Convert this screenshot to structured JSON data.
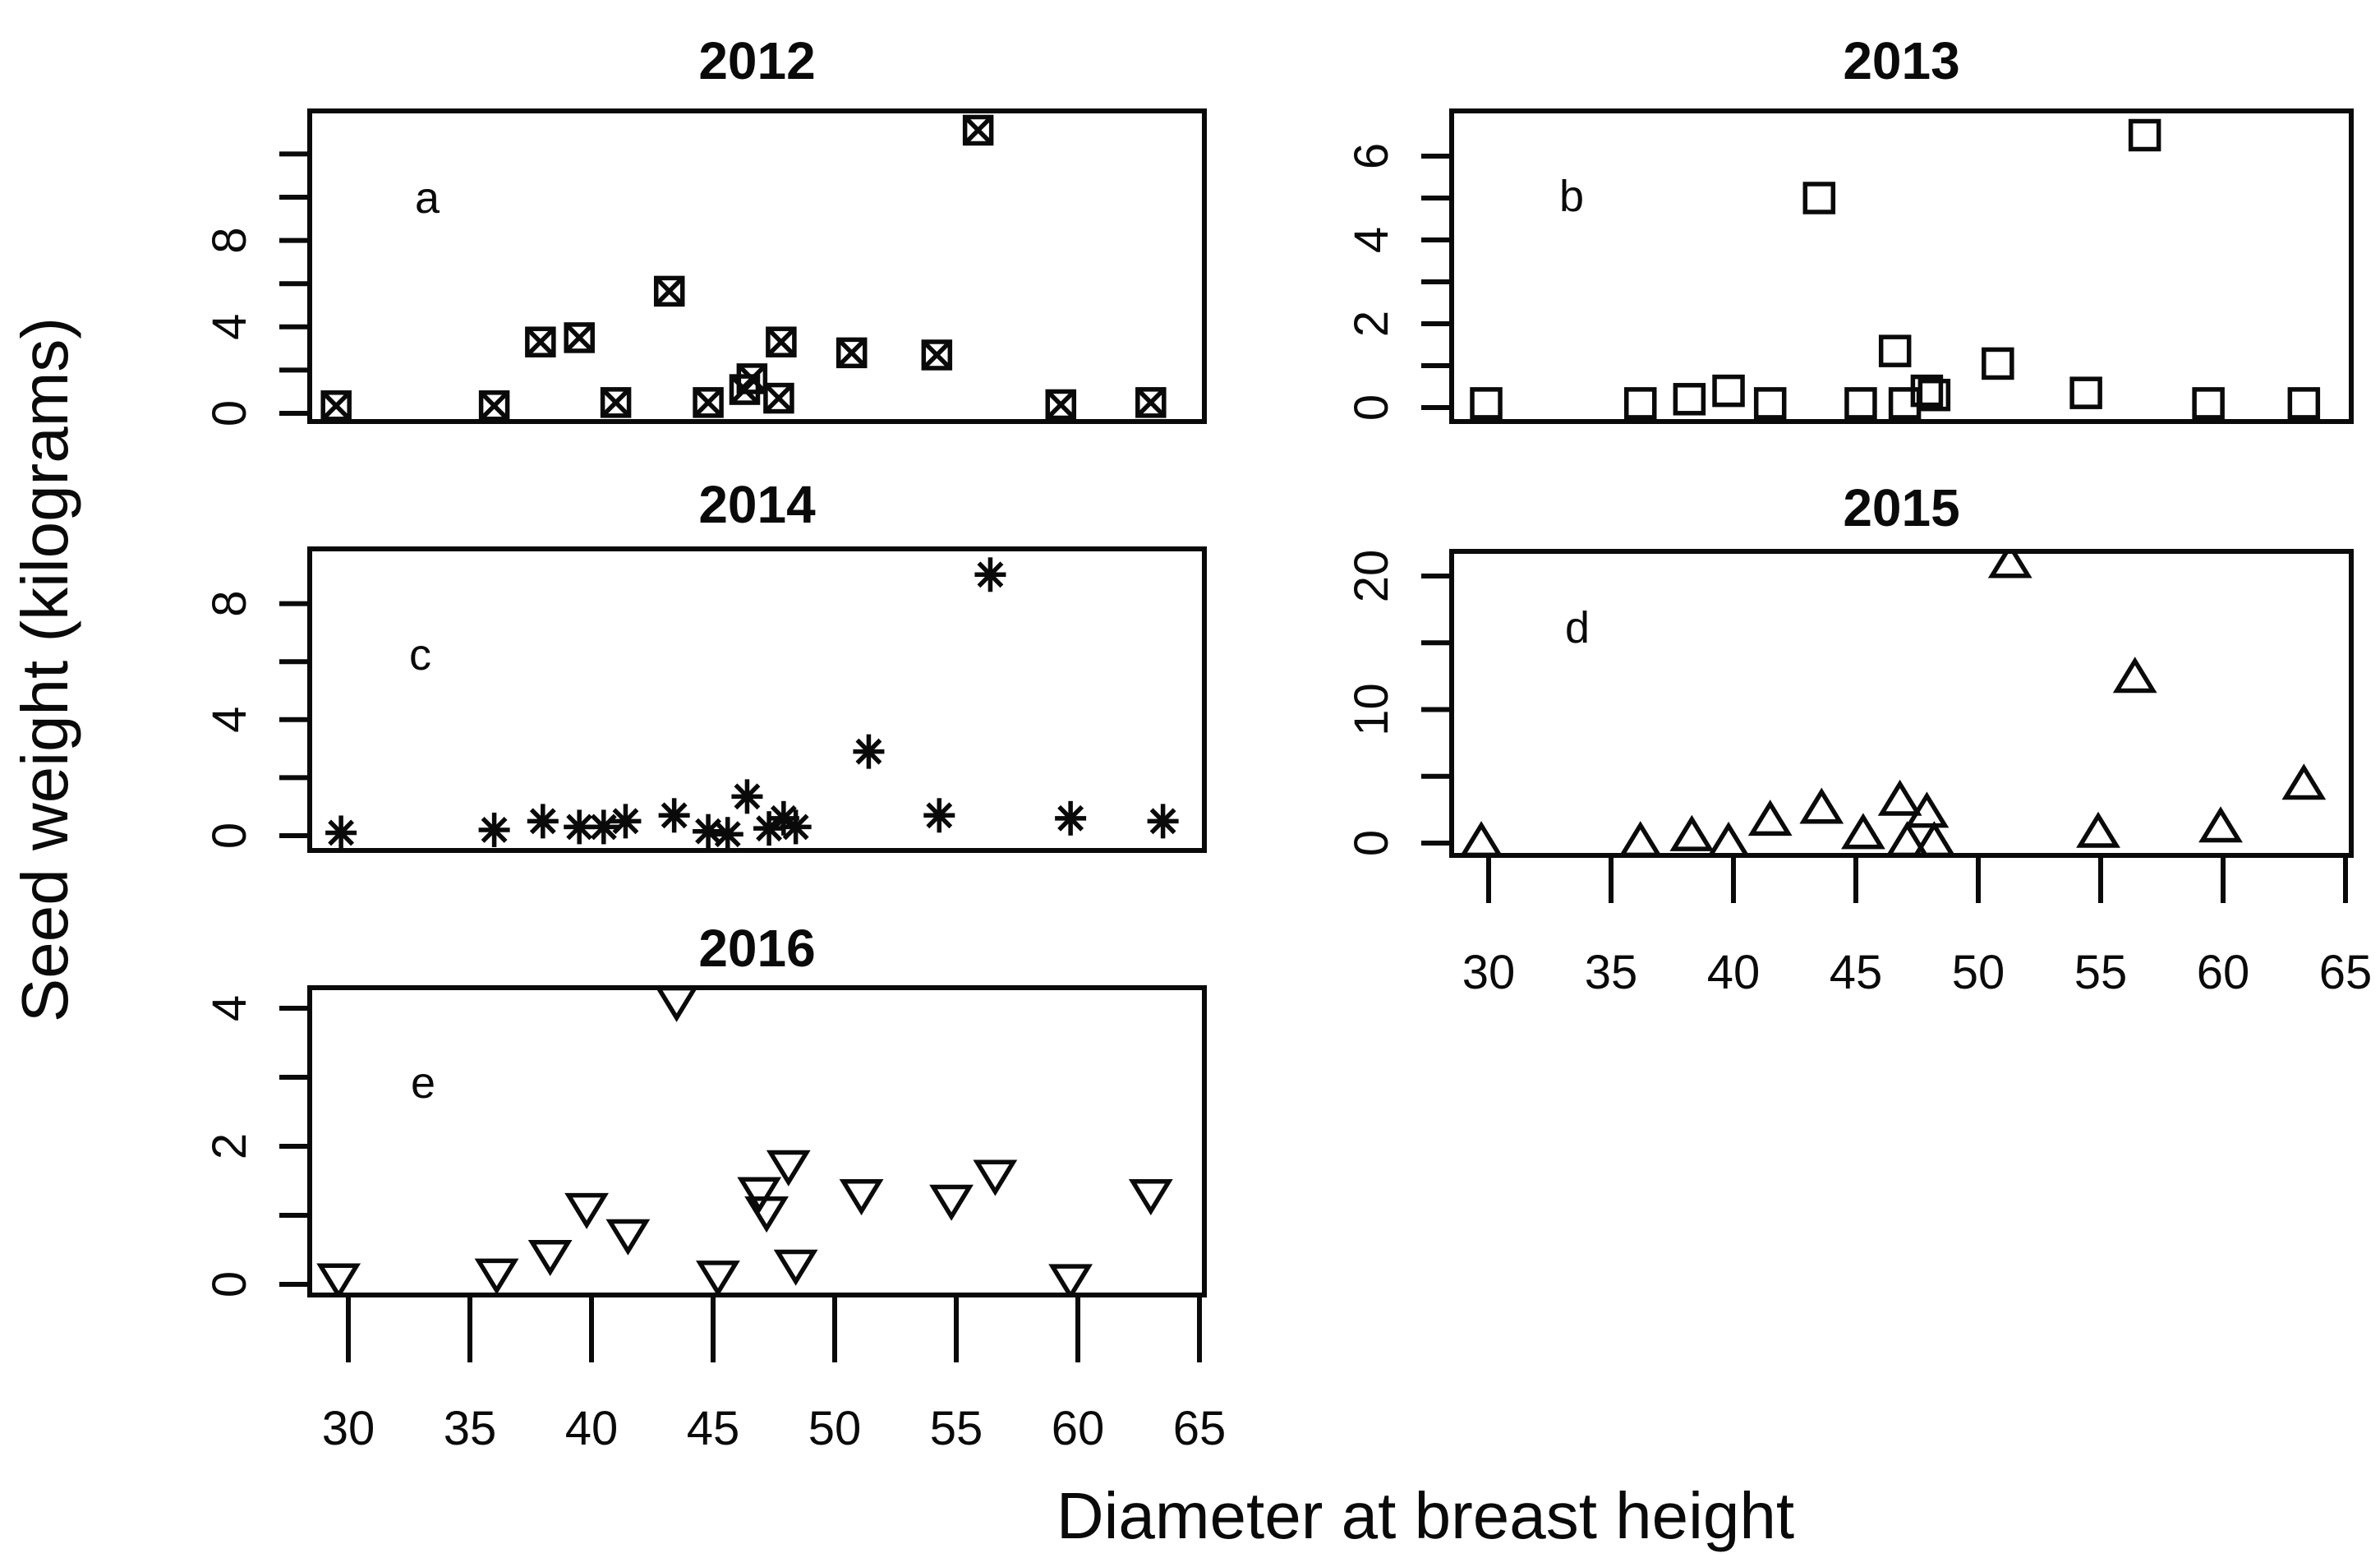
{
  "figure": {
    "xlabel": "Diameter at breast height",
    "ylabel": "Seed weight (kilograms)",
    "background_color": "#ffffff",
    "ink_color": "#0a0a0a",
    "panel_order": [
      "2012",
      "2013",
      "2014",
      "2015",
      "2016"
    ]
  },
  "chart_data": [
    {
      "type": "scatter",
      "title": "2012",
      "panel_letter": "a",
      "marker": "square-x",
      "marker_icon": "boxed-x-icon",
      "x": [
        29.5,
        36.0,
        37.9,
        39.5,
        41.0,
        43.2,
        44.8,
        46.3,
        46.6,
        47.7,
        47.8,
        50.7,
        54.2,
        55.9,
        59.3,
        63.0
      ],
      "y": [
        0.35,
        0.35,
        3.3,
        3.5,
        0.5,
        5.65,
        0.5,
        1.1,
        1.6,
        0.7,
        3.3,
        2.8,
        2.7,
        13.1,
        0.4,
        0.5
      ],
      "xlim": [
        28.2,
        65.2
      ],
      "ylim": [
        -0.4,
        14.0
      ],
      "xticks": [
        30,
        35,
        40,
        45,
        50,
        55,
        60,
        65
      ],
      "x_axis_shown": false,
      "yticks": [
        0,
        2,
        4,
        6,
        8,
        10,
        12
      ],
      "ytick_labels": [
        "0",
        "",
        "4",
        "",
        "8",
        "",
        ""
      ],
      "grid": false
    },
    {
      "type": "scatter",
      "title": "2013",
      "panel_letter": "b",
      "marker": "square",
      "marker_icon": "open-square-icon",
      "x": [
        29.9,
        36.2,
        38.2,
        39.8,
        41.5,
        43.5,
        45.2,
        46.6,
        47.0,
        47.9,
        48.2,
        50.8,
        54.4,
        56.8,
        59.4,
        63.3
      ],
      "y": [
        0.1,
        0.1,
        0.2,
        0.4,
        0.1,
        5.0,
        0.1,
        1.35,
        0.1,
        0.4,
        0.3,
        1.05,
        0.35,
        6.5,
        0.1,
        0.1
      ],
      "xlim": [
        28.5,
        65.3
      ],
      "ylim": [
        -0.35,
        7.1
      ],
      "xticks": [
        30,
        35,
        40,
        45,
        50,
        55,
        60,
        65
      ],
      "x_axis_shown": false,
      "yticks": [
        0,
        1,
        2,
        3,
        4,
        5,
        6
      ],
      "ytick_labels": [
        "0",
        "",
        "2",
        "",
        "4",
        "",
        "6"
      ],
      "grid": false
    },
    {
      "type": "scatter",
      "title": "2014",
      "panel_letter": "c",
      "marker": "star8",
      "marker_icon": "asterisk-icon",
      "x": [
        29.7,
        36.0,
        38.0,
        39.5,
        40.5,
        41.4,
        43.4,
        44.8,
        45.6,
        46.4,
        47.3,
        47.9,
        48.4,
        51.4,
        54.3,
        56.4,
        59.7,
        63.5
      ],
      "y": [
        0.1,
        0.2,
        0.5,
        0.3,
        0.3,
        0.5,
        0.7,
        0.15,
        0.05,
        1.35,
        0.25,
        0.6,
        0.3,
        2.9,
        0.7,
        9.0,
        0.6,
        0.5
      ],
      "xlim": [
        28.2,
        65.2
      ],
      "ylim": [
        -0.5,
        9.9
      ],
      "xticks": [
        30,
        35,
        40,
        45,
        50,
        55,
        60,
        65
      ],
      "x_axis_shown": false,
      "yticks": [
        0,
        2,
        4,
        6,
        8
      ],
      "ytick_labels": [
        "0",
        "",
        "4",
        "",
        "8"
      ],
      "grid": false
    },
    {
      "type": "scatter",
      "title": "2015",
      "panel_letter": "d",
      "marker": "triangle-up",
      "marker_icon": "open-triangle-up-icon",
      "x": [
        29.7,
        36.2,
        38.3,
        39.8,
        41.5,
        43.6,
        45.3,
        46.8,
        47.1,
        47.9,
        48.2,
        51.3,
        54.9,
        56.4,
        59.9,
        63.3
      ],
      "y": [
        0.1,
        0.1,
        0.55,
        0.05,
        1.7,
        2.6,
        0.7,
        3.2,
        0.1,
        2.3,
        0.1,
        21.0,
        0.8,
        12.4,
        1.2,
        4.4
      ],
      "xlim": [
        28.5,
        65.3
      ],
      "ylim": [
        -0.9,
        21.8
      ],
      "xticks": [
        30,
        35,
        40,
        45,
        50,
        55,
        60,
        65
      ],
      "xtick_labels": [
        "30",
        "35",
        "40",
        "45",
        "50",
        "55",
        "60",
        "65"
      ],
      "x_axis_shown": true,
      "yticks": [
        0,
        5,
        10,
        15,
        20
      ],
      "ytick_labels": [
        "0",
        "",
        "10",
        "",
        "20"
      ],
      "grid": false
    },
    {
      "type": "scatter",
      "title": "2016",
      "panel_letter": "e",
      "marker": "triangle-down",
      "marker_icon": "open-triangle-down-icon",
      "x": [
        29.6,
        36.1,
        38.3,
        39.8,
        41.5,
        43.5,
        45.2,
        46.9,
        47.2,
        48.1,
        48.4,
        51.1,
        54.8,
        56.6,
        59.7,
        63.0
      ],
      "y": [
        0.08,
        0.15,
        0.42,
        1.1,
        0.72,
        4.1,
        0.12,
        1.33,
        1.05,
        1.72,
        0.28,
        1.3,
        1.22,
        1.58,
        0.07,
        1.3
      ],
      "xlim": [
        28.2,
        65.2
      ],
      "ylim": [
        -0.15,
        4.3
      ],
      "xticks": [
        30,
        35,
        40,
        45,
        50,
        55,
        60,
        65
      ],
      "xtick_labels": [
        "30",
        "35",
        "40",
        "45",
        "50",
        "55",
        "60",
        "65"
      ],
      "x_axis_shown": true,
      "yticks": [
        0,
        1,
        2,
        3,
        4
      ],
      "ytick_labels": [
        "0",
        "",
        "2",
        "",
        "4"
      ],
      "grid": false
    }
  ]
}
